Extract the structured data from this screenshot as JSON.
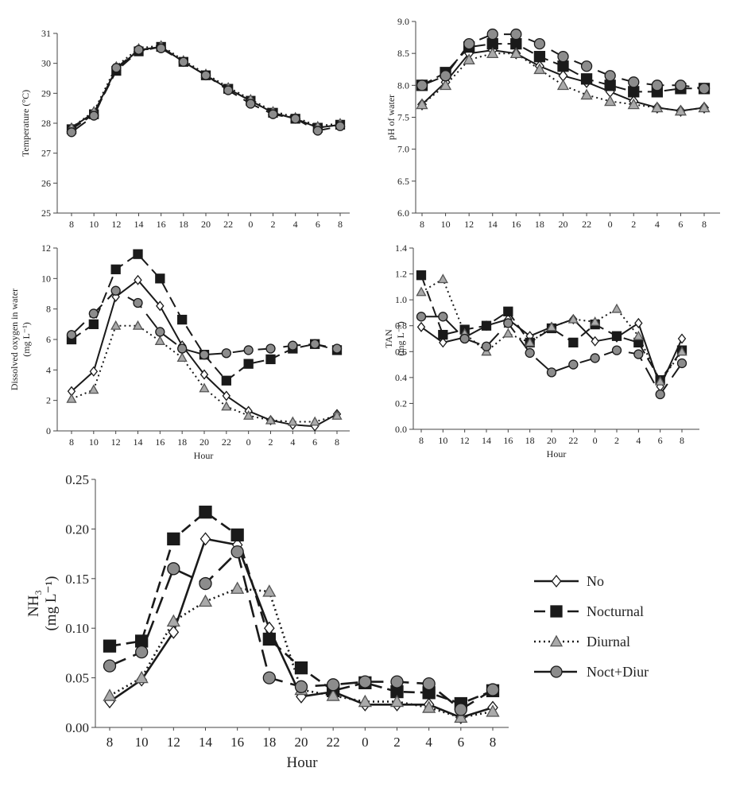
{
  "chart_data": [
    {
      "id": "temperature",
      "type": "line",
      "categories": [
        "8",
        "10",
        "12",
        "14",
        "16",
        "18",
        "20",
        "22",
        "0",
        "2",
        "4",
        "6",
        "8"
      ],
      "ylabel": "Temperature (°C)",
      "xlabel": "",
      "ylim": [
        25,
        31
      ],
      "yticks": [
        "25",
        "26",
        "27",
        "28",
        "29",
        "30",
        "31"
      ],
      "series": [
        {
          "name": "No",
          "values": [
            27.85,
            28.35,
            29.8,
            30.45,
            30.55,
            30.05,
            29.6,
            29.15,
            28.75,
            28.35,
            28.15,
            27.85,
            27.95
          ]
        },
        {
          "name": "Nocturnal",
          "values": [
            27.8,
            28.3,
            29.75,
            30.4,
            30.55,
            30.05,
            29.6,
            29.15,
            28.75,
            28.35,
            28.15,
            27.85,
            27.95
          ]
        },
        {
          "name": "Diurnal",
          "values": [
            27.85,
            28.4,
            29.9,
            30.5,
            30.6,
            30.1,
            29.65,
            29.2,
            28.8,
            28.4,
            28.2,
            27.9,
            28.0
          ]
        },
        {
          "name": "Noct+Diur",
          "values": [
            27.7,
            28.25,
            29.85,
            30.45,
            30.5,
            30.05,
            29.6,
            29.1,
            28.65,
            28.3,
            28.15,
            27.75,
            27.9
          ]
        }
      ]
    },
    {
      "id": "ph",
      "type": "line",
      "categories": [
        "8",
        "10",
        "12",
        "14",
        "16",
        "18",
        "20",
        "22",
        "0",
        "2",
        "4",
        "6",
        "8"
      ],
      "ylabel": "pH of water",
      "xlabel": "",
      "ylim": [
        6.0,
        9.0
      ],
      "yticks": [
        "6.0",
        "6.5",
        "7.0",
        "7.5",
        "8.0",
        "8.5",
        "9.0"
      ],
      "series": [
        {
          "name": "No",
          "values": [
            7.7,
            8.05,
            8.5,
            8.55,
            8.5,
            8.3,
            8.15,
            8.05,
            7.9,
            7.75,
            7.65,
            7.6,
            7.65
          ]
        },
        {
          "name": "Nocturnal",
          "values": [
            8.0,
            8.2,
            8.6,
            8.65,
            8.65,
            8.45,
            8.3,
            8.1,
            8.0,
            7.9,
            7.9,
            7.95,
            7.95
          ]
        },
        {
          "name": "Diurnal",
          "values": [
            7.7,
            8.0,
            8.4,
            8.5,
            8.5,
            8.25,
            8.0,
            7.85,
            7.75,
            7.7,
            7.65,
            7.6,
            7.65
          ]
        },
        {
          "name": "Noct+Diur",
          "values": [
            8.0,
            8.15,
            8.65,
            8.8,
            8.8,
            8.65,
            8.45,
            8.3,
            8.15,
            8.05,
            8.0,
            8.0,
            7.95
          ]
        }
      ]
    },
    {
      "id": "dissolved_oxygen",
      "type": "line",
      "categories": [
        "8",
        "10",
        "12",
        "14",
        "16",
        "18",
        "20",
        "22",
        "0",
        "2",
        "4",
        "6",
        "8"
      ],
      "ylabel": "Dissolved oxygen in water",
      "yunit": "(mg L⁻¹)",
      "xlabel": "Hour",
      "ylim": [
        0,
        12
      ],
      "yticks": [
        "0",
        "2",
        "4",
        "6",
        "8",
        "10",
        "12"
      ],
      "series": [
        {
          "name": "No",
          "values": [
            2.6,
            3.9,
            8.8,
            9.9,
            8.2,
            5.6,
            3.7,
            2.3,
            1.3,
            0.7,
            0.4,
            0.3,
            1.1
          ]
        },
        {
          "name": "Nocturnal",
          "values": [
            6.0,
            7.0,
            10.6,
            11.6,
            10.0,
            7.3,
            5.0,
            3.3,
            4.4,
            4.7,
            5.4,
            5.7,
            5.3
          ]
        },
        {
          "name": "Diurnal",
          "values": [
            2.1,
            2.7,
            6.9,
            6.9,
            5.9,
            4.8,
            2.8,
            1.6,
            1.0,
            0.7,
            0.6,
            0.6,
            1.0
          ]
        },
        {
          "name": "Noct+Diur",
          "values": [
            6.3,
            7.7,
            9.2,
            8.4,
            6.5,
            5.4,
            5.0,
            5.1,
            5.3,
            5.4,
            5.6,
            5.7,
            5.4
          ]
        }
      ]
    },
    {
      "id": "tan",
      "type": "line",
      "categories": [
        "8",
        "10",
        "12",
        "14",
        "16",
        "18",
        "20",
        "22",
        "0",
        "2",
        "4",
        "6",
        "8"
      ],
      "ylabel": "TAN",
      "yunit": "(mg L⁻¹)",
      "xlabel": "Hour",
      "ylim": [
        0.0,
        1.4
      ],
      "yticks": [
        "0.0",
        "0.2",
        "0.4",
        "0.6",
        "0.8",
        "1.0",
        "1.2",
        "1.4"
      ],
      "series": [
        {
          "name": "No",
          "values": [
            0.79,
            0.67,
            0.71,
            0.8,
            0.85,
            0.72,
            0.79,
            0.85,
            0.68,
            0.71,
            0.82,
            0.33,
            0.7
          ]
        },
        {
          "name": "Nocturnal",
          "values": [
            1.19,
            0.73,
            0.77,
            0.8,
            0.91,
            0.67,
            0.78,
            0.67,
            0.81,
            0.72,
            0.67,
            0.38,
            0.61
          ]
        },
        {
          "name": "Diurnal",
          "values": [
            1.06,
            1.16,
            0.74,
            0.6,
            0.74,
            0.67,
            0.79,
            0.85,
            0.83,
            0.93,
            0.72,
            0.37,
            0.6
          ]
        },
        {
          "name": "Noct+Diur",
          "values": [
            0.87,
            0.87,
            0.7,
            0.64,
            0.82,
            0.59,
            0.44,
            0.5,
            0.55,
            0.61,
            0.58,
            0.27,
            0.51
          ]
        }
      ]
    },
    {
      "id": "nh3",
      "type": "line",
      "categories": [
        "8",
        "10",
        "12",
        "14",
        "16",
        "18",
        "20",
        "22",
        "0",
        "2",
        "4",
        "6",
        "8"
      ],
      "ylabel": "NH₃",
      "yunit": "(mg L⁻¹)",
      "xlabel": "Hour",
      "ylim": [
        0.0,
        0.25
      ],
      "yticks": [
        "0.00",
        "0.05",
        "0.10",
        "0.15",
        "0.20",
        "0.25"
      ],
      "series": [
        {
          "name": "No",
          "values": [
            0.026,
            0.048,
            0.096,
            0.19,
            0.184,
            0.1,
            0.031,
            0.036,
            0.023,
            0.023,
            0.023,
            0.01,
            0.02
          ]
        },
        {
          "name": "Nocturnal",
          "values": [
            0.082,
            0.087,
            0.19,
            0.217,
            0.194,
            0.089,
            0.06,
            0.037,
            0.045,
            0.036,
            0.035,
            0.024,
            0.037
          ]
        },
        {
          "name": "Diurnal",
          "values": [
            0.032,
            0.05,
            0.107,
            0.127,
            0.14,
            0.137,
            0.038,
            0.032,
            0.026,
            0.026,
            0.02,
            0.01,
            0.016
          ]
        },
        {
          "name": "Noct+Diur",
          "values": [
            0.062,
            0.076,
            0.16,
            0.145,
            0.177,
            0.05,
            0.041,
            0.043,
            0.046,
            0.046,
            0.044,
            0.018,
            0.038
          ]
        }
      ]
    }
  ],
  "legend": {
    "entries": [
      {
        "label": "No",
        "marker": "diamond",
        "dash": "solid"
      },
      {
        "label": "Nocturnal",
        "marker": "square",
        "dash": "dashed"
      },
      {
        "label": "Diurnal",
        "marker": "triangle",
        "dash": "dotted"
      },
      {
        "label": "Noct+Diur",
        "marker": "circle",
        "dash": "longdash"
      }
    ],
    "placement": "right of bottom chart"
  },
  "style": {
    "axis_color": "#444444",
    "line_color": "#1a1a1a",
    "colors": {
      "No": {
        "fill": "#ffffff",
        "stroke": "#1a1a1a"
      },
      "Nocturnal": {
        "fill": "#1a1a1a",
        "stroke": "#1a1a1a"
      },
      "Diurnal": {
        "fill": "#aaaaaa",
        "stroke": "#555555"
      },
      "Noct+Diur": {
        "fill": "#8c8c8c",
        "stroke": "#1a1a1a"
      }
    }
  }
}
